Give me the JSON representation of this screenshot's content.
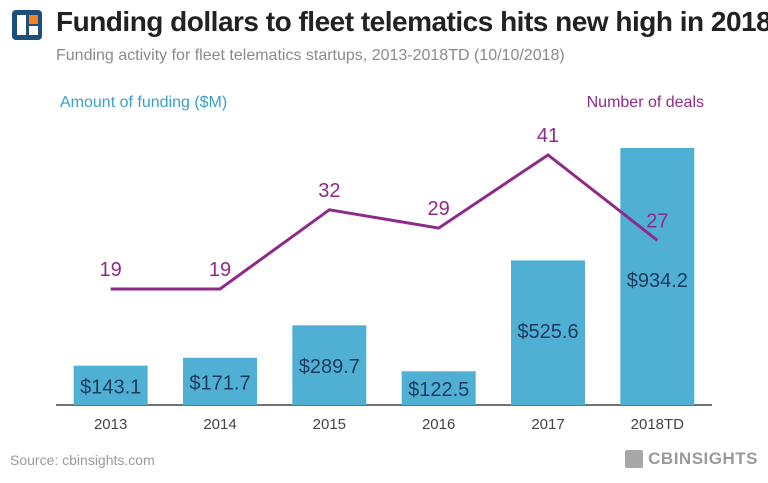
{
  "header": {
    "title": "Funding dollars to fleet telematics hits new high in 2018",
    "subtitle": "Funding activity for fleet telematics startups, 2013-2018TD (10/10/2018)"
  },
  "footer": {
    "source": "Source: cbinsights.com",
    "brand": "CBINSIGHTS"
  },
  "colors": {
    "bar": "#4fb0d4",
    "bar_label": "#1f3a5f",
    "line": "#8e2b8a",
    "axis": "#444444",
    "logo_blue": "#1e4f7a",
    "logo_orange": "#f58220"
  },
  "logo": {
    "icon": "cb-insights-logo-icon"
  },
  "chart_data": {
    "type": "bar",
    "categories": [
      "2013",
      "2014",
      "2015",
      "2016",
      "2017",
      "2018TD"
    ],
    "series": [
      {
        "name": "Amount of funding ($M)",
        "type": "bar",
        "axis": "left",
        "values": [
          143.1,
          171.7,
          289.7,
          122.5,
          525.6,
          934.2
        ],
        "labels": [
          "$143.1",
          "$171.7",
          "$289.7",
          "$122.5",
          "$525.6",
          "$934.2"
        ]
      },
      {
        "name": "Number of deals",
        "type": "line",
        "axis": "right",
        "values": [
          19,
          19,
          32,
          29,
          41,
          27
        ],
        "labels": [
          "19",
          "19",
          "32",
          "29",
          "41",
          "27"
        ]
      }
    ],
    "title": "Funding dollars to fleet telematics hits new high in 2018",
    "subtitle": "Funding activity for fleet telematics startups, 2013-2018TD (10/10/2018)",
    "ylabel_left": "Amount of funding ($M)",
    "ylabel_right": "Number of deals",
    "ylim_left": [
      0,
      950
    ],
    "ylim_right": [
      0,
      60
    ],
    "grid": false,
    "legend": "top"
  }
}
